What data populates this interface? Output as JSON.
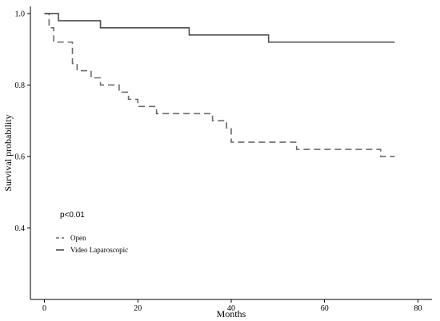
{
  "chart_data": {
    "type": "line",
    "step": true,
    "title": "",
    "xlabel": "Months",
    "ylabel": "Survival probability",
    "xlim": [
      -3,
      83
    ],
    "ylim": [
      0.2,
      1.02
    ],
    "x_ticks": [
      0,
      20,
      40,
      60,
      80
    ],
    "x_tick_labels": [
      "0",
      "20",
      "40",
      "60",
      "80"
    ],
    "y_ticks": [
      0.4,
      0.6,
      0.8,
      1.0
    ],
    "y_tick_labels": [
      "0.4",
      "0.6",
      "0.8",
      "1.0"
    ],
    "grid": false,
    "legend_position": "bottom-left",
    "annotations": [
      "p<0.01"
    ],
    "series": [
      {
        "name": "Open",
        "style": "dashed",
        "color": "#6b6b6b",
        "x": [
          0,
          1,
          2,
          6,
          7,
          10,
          12,
          16,
          18,
          20,
          24,
          36,
          39,
          40,
          54,
          72,
          75
        ],
        "y": [
          1.0,
          0.96,
          0.92,
          0.86,
          0.84,
          0.82,
          0.8,
          0.78,
          0.76,
          0.74,
          0.72,
          0.7,
          0.68,
          0.64,
          0.62,
          0.6,
          0.6
        ]
      },
      {
        "name": "Video Laparoscopic",
        "style": "solid",
        "color": "#4d4d4d",
        "x": [
          0,
          3,
          12,
          31,
          48,
          75
        ],
        "y": [
          1.0,
          0.98,
          0.96,
          0.94,
          0.92,
          0.92
        ]
      }
    ]
  }
}
